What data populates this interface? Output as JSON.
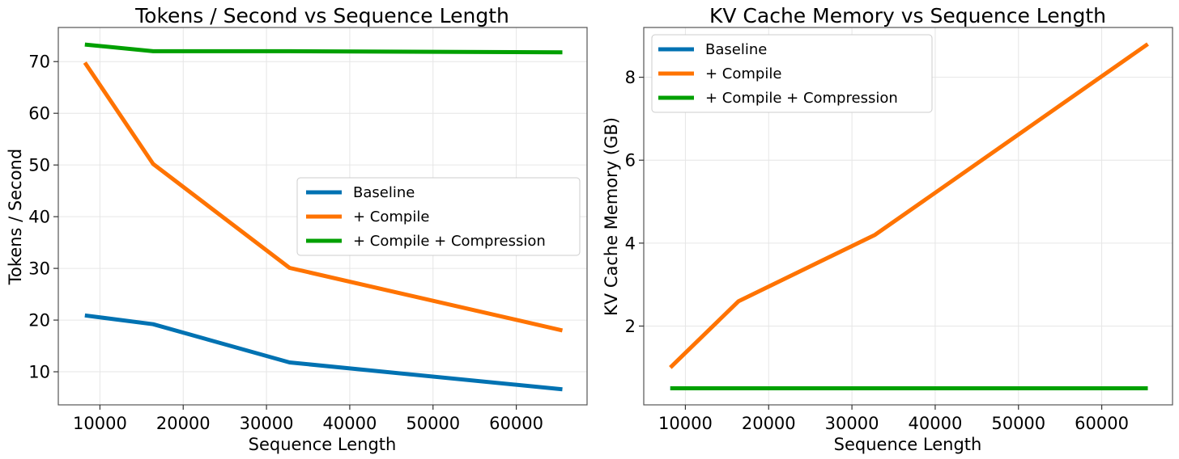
{
  "chart_data": [
    {
      "type": "line",
      "title": "Tokens / Second vs Sequence Length",
      "xlabel": "Sequence Length",
      "ylabel": "Tokens / Second",
      "xlim": [
        5000,
        68500
      ],
      "ylim": [
        3.6,
        76.6
      ],
      "xticks": [
        10000,
        20000,
        30000,
        40000,
        50000,
        60000
      ],
      "yticks": [
        10,
        20,
        30,
        40,
        50,
        60,
        70
      ],
      "x": [
        8192,
        16384,
        32768,
        65536
      ],
      "legend_position": "center-right",
      "series": [
        {
          "name": "Baseline",
          "color": "#0072b2",
          "values": [
            20.9,
            19.2,
            11.8,
            6.6
          ]
        },
        {
          "name": "+ Compile",
          "color": "#ff7300",
          "values": [
            69.8,
            50.2,
            30.1,
            18.0
          ]
        },
        {
          "name": "+ Compile + Compression",
          "color": "#00a000",
          "values": [
            73.3,
            72.0,
            72.0,
            71.8
          ]
        }
      ]
    },
    {
      "type": "line",
      "title": "KV Cache Memory vs Sequence Length",
      "xlabel": "Sequence Length",
      "ylabel": "KV Cache Memory (GB)",
      "xlim": [
        5000,
        68500
      ],
      "ylim": [
        0.1,
        9.2
      ],
      "xticks": [
        10000,
        20000,
        30000,
        40000,
        50000,
        60000
      ],
      "yticks": [
        2,
        4,
        6,
        8
      ],
      "x": [
        8192,
        16384,
        32768,
        65536
      ],
      "legend_position": "top-left",
      "series": [
        {
          "name": "Baseline",
          "color": "#0072b2",
          "values": [
            0.5,
            0.5,
            0.5,
            0.5
          ]
        },
        {
          "name": "+ Compile",
          "color": "#ff7300",
          "values": [
            1.0,
            2.6,
            4.2,
            8.8
          ]
        },
        {
          "name": "+ Compile + Compression",
          "color": "#00a000",
          "values": [
            0.5,
            0.5,
            0.5,
            0.5
          ]
        }
      ]
    }
  ]
}
